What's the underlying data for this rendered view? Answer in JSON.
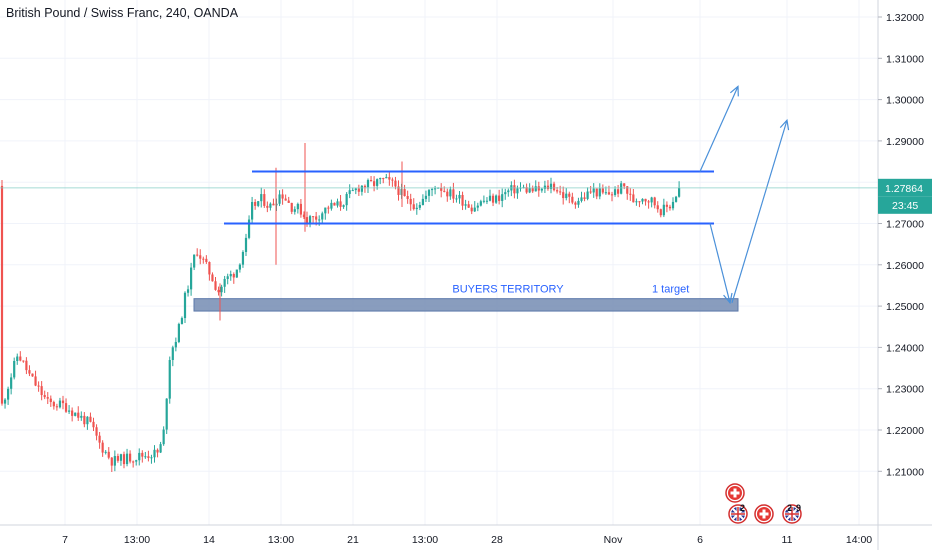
{
  "header": {
    "title": "British Pound / Swiss Franc, 240, OANDA"
  },
  "chart_data": {
    "type": "candlestick",
    "symbol": "British Pound / Swiss Franc",
    "interval": "240",
    "source": "OANDA",
    "last_price": "1.27864",
    "countdown": "23:45",
    "ylim": [
      1.2,
      1.325
    ],
    "y_ticks": [
      "1.32000",
      "1.31000",
      "1.30000",
      "1.29000",
      "1.28000",
      "1.27000",
      "1.26000",
      "1.25000",
      "1.24000",
      "1.23000",
      "1.22000",
      "1.21000"
    ],
    "x_ticks": [
      "7",
      "13:00",
      "14",
      "13:00",
      "21",
      "13:00",
      "28",
      "Nov",
      "6",
      "11",
      "14:00"
    ],
    "zone_label": "BUYERS TERRITORY",
    "zone_range": [
      1.2488,
      1.2518
    ],
    "target_label": "1 target",
    "channel": {
      "upper": 1.2826,
      "lower": 1.27
    },
    "projections": [
      {
        "from": 1.2826,
        "to": 1.3032
      },
      {
        "from": 1.27,
        "to": 1.2508
      },
      {
        "from": 1.2508,
        "to": 1.295
      }
    ],
    "colors": {
      "up": "#26a69a",
      "down": "#ef5350",
      "line": "#2962ff",
      "arrow": "#4a90d9",
      "zone": "#7d93b8",
      "price_tag": "#26a69a"
    },
    "badges": [
      "switzerland-flag-icon",
      "uk-flag-icon"
    ],
    "badge_counts": [
      "2",
      "2",
      "9"
    ]
  }
}
